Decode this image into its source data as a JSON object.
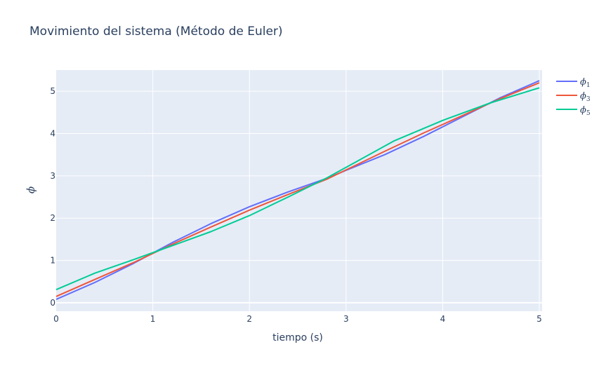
{
  "chart_data": {
    "type": "line",
    "title": "Movimiento del sistema (Método de Euler)",
    "xlabel": "tiempo (s)",
    "ylabel": "ϕ",
    "xlim": [
      0,
      5
    ],
    "ylim": [
      -0.2,
      5.5
    ],
    "xticks": [
      0,
      1,
      2,
      3,
      4,
      5
    ],
    "yticks": [
      0,
      1,
      2,
      3,
      4,
      5
    ],
    "grid": true,
    "legend_position": "top-right",
    "colors": {
      "plot_bg": "#e5ecf6",
      "grid": "#ffffff",
      "text": "#2a3f5f"
    },
    "series": [
      {
        "name": "ϕ",
        "sub": "1",
        "color": "#636efa",
        "x": [
          0,
          0.4,
          0.8,
          1.2,
          1.6,
          2.0,
          2.4,
          2.8,
          3.0,
          3.4,
          3.8,
          4.2,
          4.6,
          5.0
        ],
        "y": [
          0.08,
          0.48,
          0.93,
          1.42,
          1.87,
          2.27,
          2.62,
          2.94,
          3.13,
          3.5,
          3.93,
          4.39,
          4.85,
          5.25
        ]
      },
      {
        "name": "ϕ",
        "sub": "3",
        "color": "#ef553b",
        "x": [
          0,
          0.4,
          0.8,
          1.2,
          1.6,
          2.0,
          2.4,
          2.8,
          3.0,
          3.4,
          3.8,
          4.2,
          4.6,
          5.0
        ],
        "y": [
          0.15,
          0.55,
          0.95,
          1.38,
          1.79,
          2.19,
          2.56,
          2.92,
          3.14,
          3.58,
          4.01,
          4.42,
          4.83,
          5.2
        ]
      },
      {
        "name": "ϕ",
        "sub": "5",
        "color": "#00cc96",
        "x": [
          0,
          0.4,
          0.8,
          1.2,
          1.6,
          2.0,
          2.4,
          2.8,
          3.0,
          3.5,
          4.0,
          4.5,
          5.0
        ],
        "y": [
          0.31,
          0.7,
          1.02,
          1.35,
          1.68,
          2.06,
          2.5,
          2.95,
          3.2,
          3.83,
          4.31,
          4.73,
          5.08
        ]
      }
    ]
  }
}
